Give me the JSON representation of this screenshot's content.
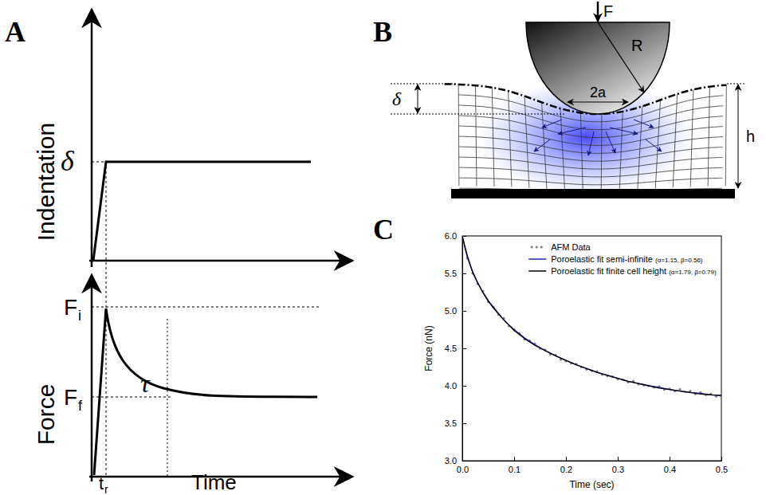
{
  "panel_labels": [
    "A",
    "B",
    "C"
  ],
  "panel_a": {
    "indentation_axis": "Indentation",
    "force_axis": "Force",
    "time_axis": "Time",
    "indentation_symbol": "δ",
    "initial_force": {
      "base": "F",
      "subscript": "i"
    },
    "final_force": {
      "base": "F",
      "subscript": "f"
    },
    "relaxation_time": "τ",
    "ramp_time": {
      "base": "t",
      "subscript": "r"
    }
  },
  "panel_b": {
    "force": "F",
    "radius": "R",
    "contact_diameter": "2a",
    "indentation_depth": "δ",
    "height": "h"
  },
  "chart_data": {
    "type": "scatter",
    "xlabel": "Time (sec)",
    "ylabel": "Force (nN)",
    "xlim": [
      0,
      0.5
    ],
    "ylim": [
      3,
      6
    ],
    "xticks": [
      {
        "value": 0,
        "label": "0.0"
      },
      0.1,
      0.2,
      0.3,
      0.4,
      0.5
    ],
    "yticks": [
      {
        "value": 3,
        "label": "3.0"
      },
      3.5,
      {
        "value": 4,
        "label": "4.0"
      },
      4.5,
      {
        "value": 5,
        "label": "5.0"
      },
      5.5,
      {
        "value": 6,
        "label": "6.0"
      }
    ],
    "legend": "top",
    "series": [
      {
        "name": "AFM Data",
        "type": "scatter",
        "marker": "circle",
        "color": "#808080",
        "x": [
          0,
          0.01,
          0.02,
          0.03,
          0.04,
          0.05,
          0.06,
          0.07,
          0.08,
          0.09,
          0.1,
          0.11,
          0.12,
          0.13,
          0.14,
          0.15,
          0.16,
          0.17,
          0.18,
          0.19,
          0.2,
          0.21,
          0.22,
          0.23,
          0.24,
          0.25,
          0.26,
          0.27,
          0.28,
          0.29,
          0.3,
          0.31,
          0.32,
          0.33,
          0.34,
          0.35,
          0.36,
          0.37,
          0.38,
          0.39,
          0.4,
          0.41,
          0.42,
          0.43,
          0.44,
          0.45,
          0.46,
          0.47,
          0.48,
          0.49,
          0.5
        ],
        "values": [
          6.0,
          5.7,
          5.5,
          5.36,
          5.26,
          5.12,
          5.05,
          4.95,
          4.9,
          4.8,
          4.75,
          4.7,
          4.62,
          4.6,
          4.56,
          4.5,
          4.48,
          4.42,
          4.41,
          4.35,
          4.33,
          4.3,
          4.29,
          4.25,
          4.22,
          4.2,
          4.19,
          4.15,
          4.13,
          4.12,
          4.09,
          4.08,
          4.05,
          4.06,
          4.02,
          4.01,
          4.0,
          3.98,
          3.99,
          3.95,
          3.96,
          3.93,
          3.95,
          3.92,
          3.93,
          3.89,
          3.91,
          3.88,
          3.89,
          3.86,
          3.85
        ]
      },
      {
        "name": "Poroelastic fit semi-infinite (α=1.15, β=0.56)",
        "type": "line",
        "line_style": "solid",
        "color": "#2323c8",
        "x": [
          0,
          0.005,
          0.01,
          0.02,
          0.03,
          0.04,
          0.05,
          0.06,
          0.07,
          0.08,
          0.09,
          0.1,
          0.12,
          0.14,
          0.16,
          0.18,
          0.2,
          0.22,
          0.24,
          0.26,
          0.28,
          0.3,
          0.32,
          0.34,
          0.36,
          0.38,
          0.4,
          0.42,
          0.44,
          0.46,
          0.48,
          0.5
        ],
        "values": [
          6.0,
          5.84,
          5.71,
          5.51,
          5.37,
          5.25,
          5.14,
          5.05,
          4.96,
          4.88,
          4.81,
          4.75,
          4.64,
          4.55,
          4.47,
          4.4,
          4.34,
          4.28,
          4.23,
          4.18,
          4.14,
          4.1,
          4.06,
          4.03,
          4.0,
          3.98,
          3.95,
          3.93,
          3.91,
          3.9,
          3.88,
          3.87
        ]
      },
      {
        "name": "Poroelastic fit finite cell height (α=1.79, β=0.79)",
        "type": "line",
        "line_style": "solid",
        "color": "#000000",
        "x": [
          0,
          0.005,
          0.01,
          0.02,
          0.03,
          0.04,
          0.05,
          0.06,
          0.07,
          0.08,
          0.09,
          0.1,
          0.12,
          0.14,
          0.16,
          0.18,
          0.2,
          0.22,
          0.24,
          0.26,
          0.28,
          0.3,
          0.32,
          0.34,
          0.36,
          0.38,
          0.4,
          0.42,
          0.44,
          0.46,
          0.48,
          0.5
        ],
        "values": [
          6.0,
          5.86,
          5.73,
          5.52,
          5.37,
          5.24,
          5.13,
          5.04,
          4.96,
          4.88,
          4.81,
          4.74,
          4.63,
          4.54,
          4.47,
          4.4,
          4.34,
          4.28,
          4.23,
          4.18,
          4.14,
          4.1,
          4.06,
          4.03,
          4.0,
          3.97,
          3.95,
          3.93,
          3.91,
          3.89,
          3.88,
          3.87
        ]
      }
    ]
  }
}
